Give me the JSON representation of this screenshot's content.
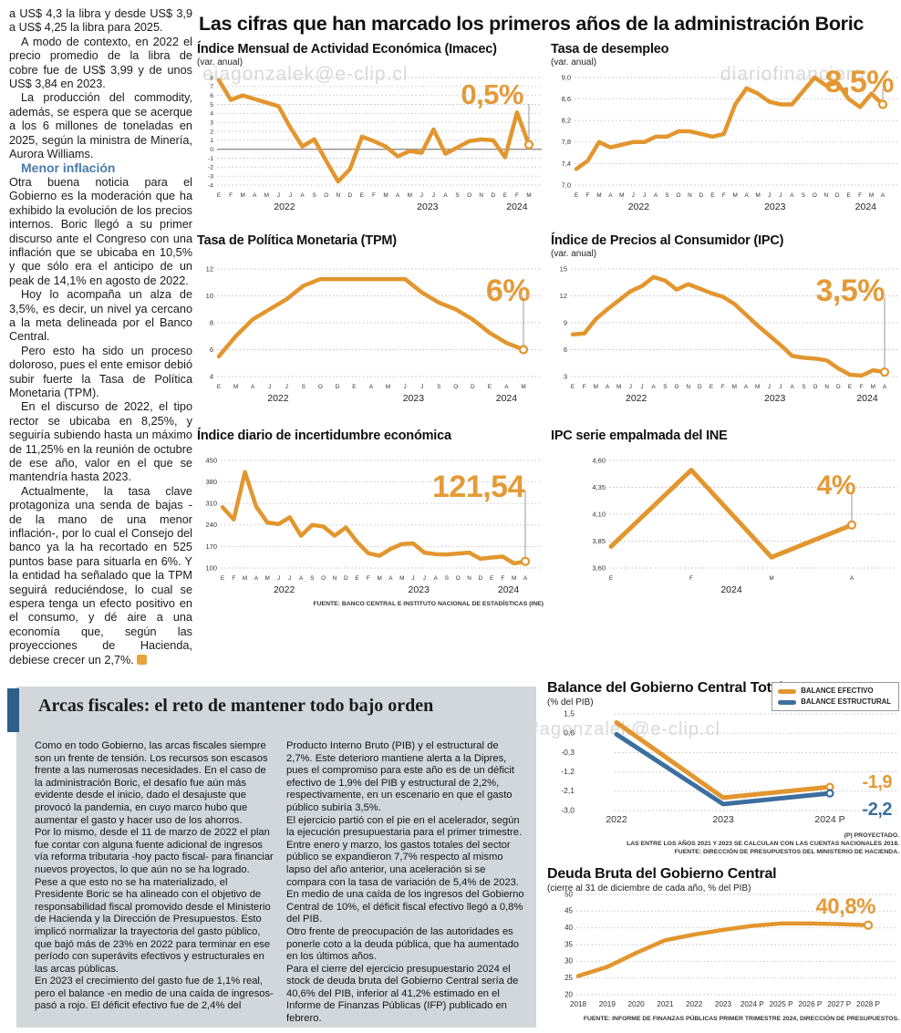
{
  "page": {
    "main_title": "Las cifras que han marcado los primeros años de la administración Boric"
  },
  "theme": {
    "accent_orange": "#e2962e",
    "accent_blue": "#3c6e9f",
    "subhead_blue": "#4a7cad",
    "section_bg": "#d2d7db",
    "sidebar_blue": "#2e5f8a"
  },
  "watermarks": [
    {
      "text": "eiagonzalek@e-clip.cl"
    },
    {
      "text": "diariofinanciero"
    },
    {
      "text": "diariofinanciero#agonzalek@e-clip.cl"
    }
  ],
  "left_article": {
    "paragraphs": [
      "a US$ 4,3 la libra y desde US$ 3,9 a US$ 4,25 la libra para 2025.",
      "A modo de contexto, en 2022 el precio promedio de la libra de cobre fue de US$ 3,99 y de unos US$ 3,84 en 2023.",
      "La producción del commodity, además, se espera que se acerque a los 6 millones de toneladas en 2025, según la ministra de Minería, Aurora Williams."
    ],
    "subhead": "Menor inflación",
    "paragraphs2": [
      "Otra buena noticia para el Gobierno es la moderación que ha exhibido la evolución de los precios internos. Boric llegó a su primer discurso ante el Congreso con una inflación que se ubicaba en 10,5% y que sólo era el anticipo de un peak de 14,1% en agosto de 2022.",
      "Hoy lo acompaña un alza de 3,5%, es decir, un nivel ya cercano a la meta delineada por el Banco Central.",
      "Pero esto ha sido un proceso doloroso, pues el ente emisor debió subir fuerte la Tasa de Política Monetaria (TPM).",
      "En el discurso de 2022, el tipo rector se ubicaba en 8,25%, y seguiría subiendo hasta un máximo de 11,25% en la reunión de octubre de ese año, valor en el que se mantendría hasta 2023.",
      "Actualmente, la tasa clave protagoniza una senda de bajas -de la mano de una menor inflación-, por lo cual el Consejo del banco ya la ha recortado en 525 puntos base para situarla en 6%. Y la entidad ha señalado que la TPM seguirá reduciéndose, lo cual se espera tenga un efecto positivo en el consumo, y dé aire a una economía que, según las proyecciones de Hacienda, debiese crecer un 2,7%."
    ]
  },
  "bottom": {
    "headline": "Arcas fiscales: el reto de mantener todo bajo orden",
    "col1": [
      "Como en todo Gobierno, las arcas fiscales siempre son un frente de tensión. Los recursos son escasos frente a las numerosas necesidades. En el caso de la administración Boric, el desafío fue aún más evidente desde el inicio, dado el desajuste que provocó la pandemia, en cuyo marco hubo que aumentar el gasto y hacer uso de los ahorros.",
      "Por lo mismo, desde el 11 de marzo de 2022 el plan fue contar con alguna fuente adicional de ingresos vía reforma tributaria -hoy pacto fiscal- para financiar nuevos proyectos, lo que aún no se ha logrado.",
      "Pese a que esto no se ha materializado, el Presidente Boric se ha alineado con el objetivo de responsabilidad fiscal promovido desde el Ministerio de Hacienda y la Dirección de Presupuestos. Esto implicó normalizar la trayectoria del gasto público, que bajó más de 23% en 2022 para terminar en ese período con superávits efectivos y estructurales en las arcas públicas.",
      "En 2023 el crecimiento del gasto fue de 1,1% real, pero el balance -en medio de una caída de ingresos-  pasó a rojo. El déficit efectivo fue de 2,4% del"
    ],
    "col2": [
      "Producto Interno Bruto (PIB) y el estructural de 2,7%. Este deterioro mantiene alerta a la Dipres, pues el compromiso para este año es de un déficit efectivo de 1,9% del PIB y estructural de 2,2%, respectivamente, en un escenario en que el gasto público subiría 3,5%.",
      "El ejercicio partió con el pie en el acelerador, según la ejecución presupuestaria para el primer trimestre. Entre enero y marzo, los gastos totales del sector público se expandieron 7,7% respecto al mismo lapso del año anterior, una aceleración si se compara con la tasa de variación de 5,4% de 2023.",
      "En medio de una caída de los ingresos del Gobierno Central de 10%, el déficit fiscal efectivo llegó a 0,8% del PIB.",
      "Otro frente de preocupación de las autoridades es ponerle coto a la deuda pública, que ha aumentado en los últimos años.",
      "Para el cierre del ejercicio presupuestario 2024 el stock de deuda bruta del Gobierno Central sería de 40,6% del PIB, inferior al 41,2% estimado en el Informe de Finanzas Públicas (IFP) publicado en febrero."
    ]
  },
  "chart_data": [
    {
      "type": "line",
      "title": "Índice Mensual de Actividad Económica (Imacec)",
      "subtitle": "(var. anual)",
      "callout": "0,5%",
      "ylim": [
        -4,
        8
      ],
      "zero_line": true,
      "yticks": [
        [
          8,
          "8"
        ],
        [
          7,
          "7"
        ],
        [
          6,
          "6"
        ],
        [
          5,
          "5"
        ],
        [
          4,
          "4"
        ],
        [
          3,
          "3"
        ],
        [
          2,
          "2"
        ],
        [
          1,
          "1"
        ],
        [
          0,
          "0"
        ],
        [
          -1,
          "-1"
        ],
        [
          -2,
          "-2"
        ],
        [
          -3,
          "-3"
        ],
        [
          -4,
          "-4"
        ]
      ],
      "x_labels": [
        "E",
        "F",
        "M",
        "A",
        "M",
        "J",
        "J",
        "A",
        "S",
        "O",
        "N",
        "D",
        "E",
        "F",
        "M",
        "A",
        "M",
        "J",
        "J",
        "A",
        "S",
        "O",
        "N",
        "D",
        "E",
        "F",
        "M"
      ],
      "x_groups": [
        {
          "label": "2022",
          "from": 0,
          "to": 11
        },
        {
          "label": "2023",
          "from": 12,
          "to": 23
        },
        {
          "label": "2024",
          "from": 24,
          "to": 26
        }
      ],
      "series": [
        {
          "name": "Imacec",
          "color": "#e2962e",
          "values": [
            7.7,
            5.5,
            6.0,
            5.6,
            5.2,
            4.8,
            2.4,
            0.3,
            1.1,
            -1.3,
            -3.6,
            -2.2,
            1.4,
            0.9,
            0.3,
            -0.8,
            -0.2,
            -0.4,
            2.2,
            -0.5,
            0.2,
            0.9,
            1.1,
            1.0,
            -0.9,
            4.1,
            0.5
          ]
        }
      ]
    },
    {
      "type": "line",
      "title": "Tasa de desempleo",
      "subtitle": "(var. anual)",
      "callout": "8,5%",
      "ylim": [
        7.0,
        9.0
      ],
      "yticks": [
        [
          9.0,
          "9,0"
        ],
        [
          8.6,
          "8,6"
        ],
        [
          8.2,
          "8,2"
        ],
        [
          7.8,
          "7,8"
        ],
        [
          7.4,
          "7,4"
        ],
        [
          7.0,
          "7,0"
        ]
      ],
      "x_labels": [
        "E",
        "F",
        "M",
        "A",
        "M",
        "J",
        "J",
        "A",
        "S",
        "O",
        "N",
        "D",
        "E",
        "F",
        "M",
        "A",
        "M",
        "J",
        "J",
        "A",
        "S",
        "O",
        "N",
        "D",
        "E",
        "F",
        "M",
        "A"
      ],
      "x_groups": [
        {
          "label": "2022",
          "from": 0,
          "to": 11
        },
        {
          "label": "2023",
          "from": 12,
          "to": 23
        },
        {
          "label": "2024",
          "from": 24,
          "to": 27
        }
      ],
      "series": [
        {
          "name": "Tasa de desempleo",
          "color": "#e2962e",
          "values": [
            7.3,
            7.45,
            7.8,
            7.7,
            7.75,
            7.8,
            7.8,
            7.9,
            7.9,
            8.0,
            8.0,
            7.95,
            7.9,
            7.95,
            8.5,
            8.8,
            8.7,
            8.55,
            8.5,
            8.5,
            8.75,
            9.0,
            8.85,
            8.9,
            8.6,
            8.45,
            8.7,
            8.5
          ]
        }
      ]
    },
    {
      "type": "line",
      "title": "Tasa de Política Monetaria (TPM)",
      "subtitle": "",
      "callout": "6%",
      "ylim": [
        4,
        12
      ],
      "yticks": [
        [
          12,
          "12"
        ],
        [
          10,
          "10"
        ],
        [
          8,
          "8"
        ],
        [
          6,
          "6"
        ],
        [
          4,
          "4"
        ]
      ],
      "x_labels": [
        "E",
        "M",
        "A",
        "J",
        "J",
        "S",
        "O",
        "D",
        "E",
        "A",
        "M",
        "J",
        "J",
        "S",
        "O",
        "D",
        "E",
        "A",
        "M"
      ],
      "x_groups": [
        {
          "label": "2022",
          "from": 0,
          "to": 7
        },
        {
          "label": "2023",
          "from": 8,
          "to": 15
        },
        {
          "label": "2024",
          "from": 16,
          "to": 18
        }
      ],
      "series": [
        {
          "name": "TPM",
          "color": "#e2962e",
          "values": [
            5.5,
            7.0,
            8.25,
            9.0,
            9.75,
            10.75,
            11.25,
            11.25,
            11.25,
            11.25,
            11.25,
            11.25,
            10.25,
            9.5,
            9.0,
            8.25,
            7.25,
            6.5,
            6.0
          ]
        }
      ]
    },
    {
      "type": "line",
      "title": "Índice de Precios al Consumidor (IPC)",
      "subtitle": "(var. anual)",
      "callout": "3,5%",
      "ylim": [
        3,
        15
      ],
      "yticks": [
        [
          15,
          "15"
        ],
        [
          12,
          "12"
        ],
        [
          9,
          "9"
        ],
        [
          6,
          "6"
        ],
        [
          3,
          "3"
        ]
      ],
      "x_labels": [
        "E",
        "F",
        "M",
        "A",
        "M",
        "J",
        "J",
        "A",
        "S",
        "O",
        "N",
        "D",
        "E",
        "F",
        "M",
        "A",
        "M",
        "J",
        "J",
        "A",
        "S",
        "O",
        "N",
        "D",
        "E",
        "F",
        "M",
        "A"
      ],
      "x_groups": [
        {
          "label": "2022",
          "from": 0,
          "to": 11
        },
        {
          "label": "2023",
          "from": 12,
          "to": 23
        },
        {
          "label": "2024",
          "from": 24,
          "to": 27
        }
      ],
      "series": [
        {
          "name": "IPC",
          "color": "#e2962e",
          "values": [
            7.7,
            7.8,
            9.4,
            10.5,
            11.5,
            12.5,
            13.1,
            14.1,
            13.7,
            12.7,
            13.3,
            12.8,
            12.3,
            11.9,
            11.1,
            9.9,
            8.7,
            7.6,
            6.5,
            5.3,
            5.1,
            5.0,
            4.8,
            3.9,
            3.2,
            3.1,
            3.7,
            3.5
          ]
        }
      ]
    },
    {
      "type": "line",
      "title": "Índice diario de incertidumbre económica",
      "subtitle": "",
      "callout": "121,54",
      "ylim": [
        100,
        450
      ],
      "yticks": [
        [
          450,
          "450"
        ],
        [
          380,
          "380"
        ],
        [
          310,
          "310"
        ],
        [
          240,
          "240"
        ],
        [
          170,
          "170"
        ],
        [
          100,
          "100"
        ]
      ],
      "x_labels": [
        "E",
        "F",
        "M",
        "A",
        "M",
        "J",
        "J",
        "A",
        "S",
        "O",
        "N",
        "D",
        "E",
        "F",
        "M",
        "A",
        "M",
        "J",
        "J",
        "A",
        "S",
        "O",
        "N",
        "D",
        "E",
        "F",
        "M",
        "A"
      ],
      "x_groups": [
        {
          "label": "2022",
          "from": 0,
          "to": 11
        },
        {
          "label": "2023",
          "from": 12,
          "to": 23
        },
        {
          "label": "2024",
          "from": 24,
          "to": 27
        }
      ],
      "fuente": "FUENTE: BANCO CENTRAL E INSTITUTO NACIONAL DE ESTADÍSTICAS (INE)",
      "series": [
        {
          "name": "Incertidumbre económica",
          "color": "#e2962e",
          "values": [
            298,
            258,
            412,
            300,
            248,
            243,
            265,
            205,
            240,
            235,
            205,
            232,
            185,
            148,
            140,
            162,
            178,
            180,
            150,
            145,
            144,
            147,
            150,
            130,
            134,
            137,
            115,
            121.54
          ]
        }
      ]
    },
    {
      "type": "line",
      "title": "IPC serie empalmada del INE",
      "subtitle": "",
      "callout": "4%",
      "ylim": [
        3.6,
        4.6
      ],
      "yticks": [
        [
          4.6,
          "4,60"
        ],
        [
          4.35,
          "4,35"
        ],
        [
          4.1,
          "4,10"
        ],
        [
          3.85,
          "3,85"
        ],
        [
          3.6,
          "3,60"
        ]
      ],
      "x_labels": [
        "E",
        "F",
        "M",
        "A"
      ],
      "x_groups": [
        {
          "label": "2024",
          "from": 0,
          "to": 3
        }
      ],
      "series": [
        {
          "name": "IPC empalmada",
          "color": "#e2962e",
          "values": [
            3.8,
            4.51,
            3.7,
            4.0
          ]
        }
      ]
    },
    {
      "type": "line",
      "title": "Balance del Gobierno Central Total",
      "subtitle": "(% del PIB)",
      "ylim": [
        -3.0,
        1.5
      ],
      "yticks": [
        [
          1.5,
          "1,5"
        ],
        [
          0.6,
          "0,6"
        ],
        [
          -0.3,
          "-0,3"
        ],
        [
          -1.2,
          "-1,2"
        ],
        [
          -2.1,
          "-2,1"
        ],
        [
          -3.0,
          "-3,0"
        ]
      ],
      "x_labels": [
        "2022",
        "2023",
        "2024 P"
      ],
      "notes": [
        "(P) PROYECTADO.",
        "LAS ENTRE LOS AÑOS 2021 Y 2023 SE CALCULAN  CON LAS CUENTAS NACIONALES 2018.",
        "FUENTE: DIRECCIÓN DE PRESUPUESTOS DEL MINISTERIO DE HACIENDA."
      ],
      "series": [
        {
          "name": "BALANCE EFECTIVO",
          "color": "#e2962e",
          "callout": "-1,9",
          "values": [
            1.1,
            -2.4,
            -1.9
          ]
        },
        {
          "name": "BALANCE ESTRUCTURAL",
          "color": "#3c6e9f",
          "callout": "-2,2",
          "values": [
            0.55,
            -2.7,
            -2.2
          ]
        }
      ]
    },
    {
      "type": "line",
      "title": "Deuda Bruta del Gobierno Central",
      "subtitle": "(cierre al 31 de diciembre de cada año, % del PIB)",
      "callout": "40,8%",
      "ylim": [
        20,
        50
      ],
      "yticks": [
        [
          50,
          "50"
        ],
        [
          45,
          "45"
        ],
        [
          40,
          "40"
        ],
        [
          35,
          "35"
        ],
        [
          30,
          "30"
        ],
        [
          25,
          "25"
        ],
        [
          20,
          "20"
        ]
      ],
      "x_labels": [
        "2018",
        "2019",
        "2020",
        "2021",
        "2022",
        "2023",
        "2024 P",
        "2025 P",
        "2026 P",
        "2027 P",
        "2028 P"
      ],
      "fuente": "FUENTE: INFORME DE FINANZAS PÚBLICAS PRIMER TRIMESTRE 2024, DIRECCIÓN DE PRESUPUESTOS.",
      "series": [
        {
          "name": "Deuda bruta",
          "color": "#e2962e",
          "values": [
            25.6,
            28.3,
            32.5,
            36.3,
            38.0,
            39.4,
            40.6,
            41.3,
            41.3,
            41.1,
            40.8
          ]
        }
      ]
    }
  ]
}
